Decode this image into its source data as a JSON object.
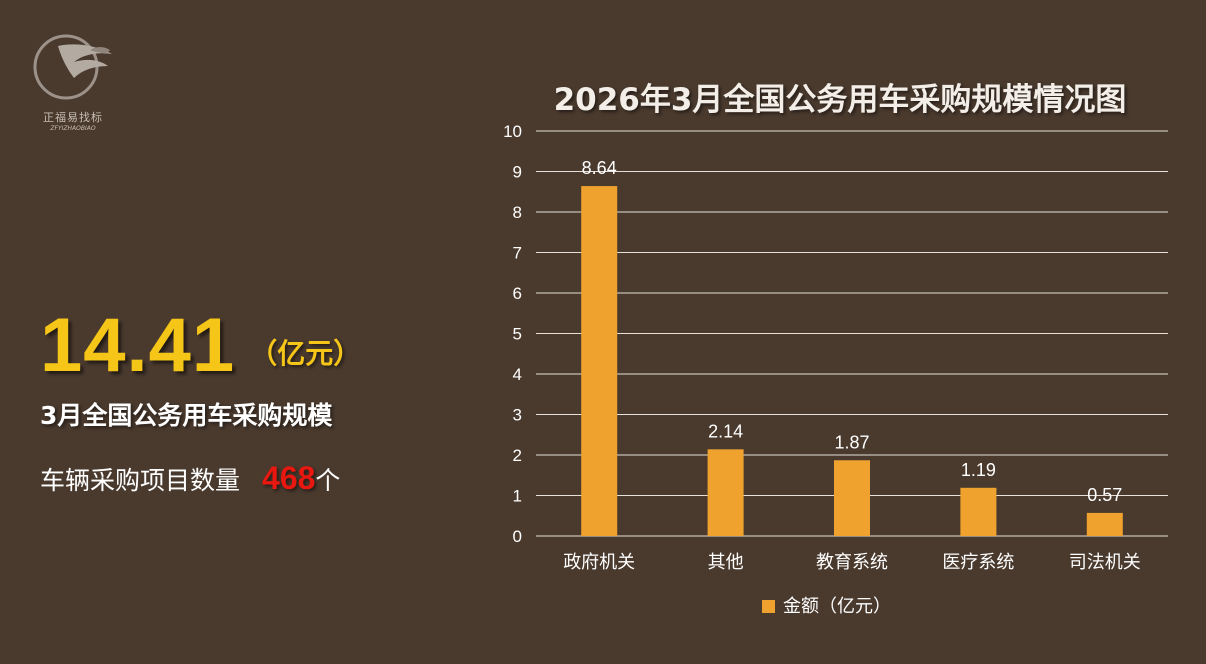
{
  "brand": {
    "name_cn": "正福易找标",
    "name_en": "ZFYIZHAOBIAO",
    "logo_icon": "eagle-circle-logo"
  },
  "summary": {
    "total_value": "14.41",
    "total_unit": "（亿元）",
    "subtitle": "3月全国公务用车采购规模",
    "count_label": "车辆采购项目数量",
    "count_value": "468",
    "count_unit": "个"
  },
  "colors": {
    "background": "#4a3a2e",
    "bar": "#f0a22e",
    "highlight_number": "#f5c518",
    "count_number": "#e8170f"
  },
  "chart_data": {
    "type": "bar",
    "title": "2026年3月全国公务用车采购规模情况图",
    "categories": [
      "政府机关",
      "其他",
      "教育系统",
      "医疗系统",
      "司法机关"
    ],
    "series": [
      {
        "name": "金额（亿元）",
        "values": [
          8.64,
          2.14,
          1.87,
          1.19,
          0.57
        ]
      }
    ],
    "data_labels": [
      "8.64",
      "2.14",
      "1.87",
      "1.19",
      "0.57"
    ],
    "ylim": [
      0,
      10
    ],
    "yticks": [
      0,
      1,
      2,
      3,
      4,
      5,
      6,
      7,
      8,
      9,
      10
    ],
    "grid": true,
    "legend_position": "bottom"
  }
}
